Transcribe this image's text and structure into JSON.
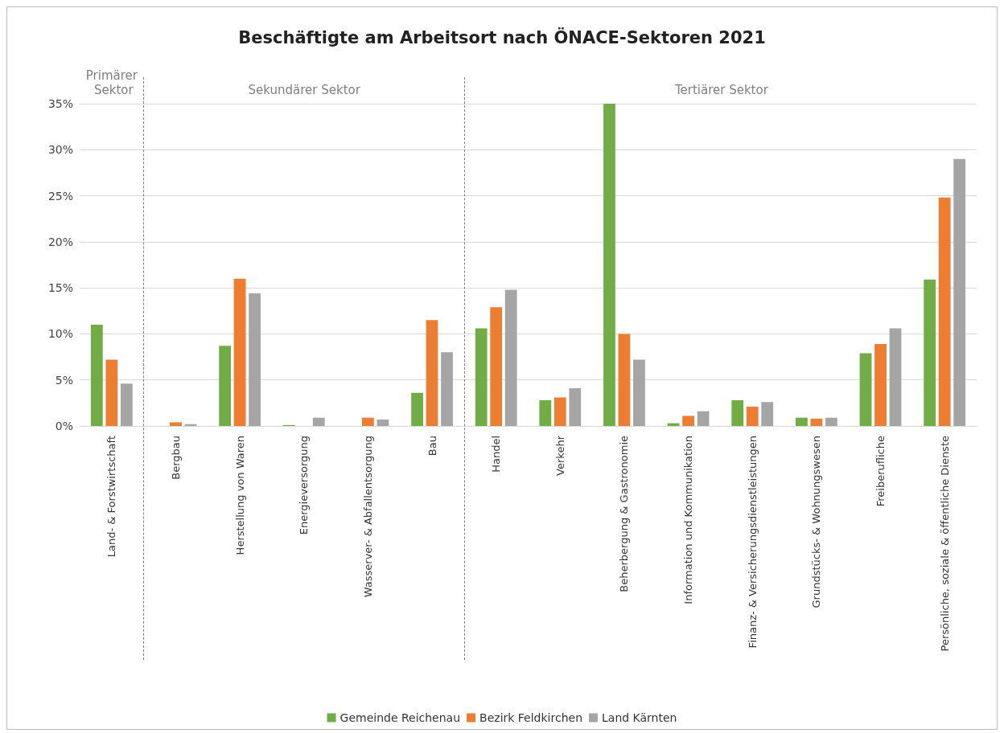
{
  "chart_data": {
    "type": "bar",
    "title": "Beschäftigte am Arbeitsort nach ÖNACE-Sektoren 2021",
    "categories": [
      "Land- & Forstwirtschaft",
      "Bergbau",
      "Herstellung von Waren",
      "Energieversorgung",
      "Wasserver- & Abfallentsorgung",
      "Bau",
      "Handel",
      "Verkehr",
      "Beherbergung & Gastronomie",
      "Information und Kommunikation",
      "Finanz- & Versicherungsdienstleistungen",
      "Grundstücks- & Wohnungswesen",
      "Freiberufliche",
      "Persönliche, soziale & öffentliche Dienste"
    ],
    "series": [
      {
        "name": "Gemeinde Reichenau",
        "color": "#70ad47",
        "values": [
          11.0,
          0,
          8.7,
          0.1,
          0,
          3.6,
          10.6,
          2.8,
          35.0,
          0.3,
          2.8,
          0.9,
          7.9,
          15.9
        ]
      },
      {
        "name": "Bezirk Feldkirchen",
        "color": "#ed7d31",
        "values": [
          7.2,
          0.4,
          16.0,
          0,
          0.9,
          11.5,
          12.9,
          3.1,
          10.0,
          1.1,
          2.1,
          0.8,
          8.9,
          24.8
        ]
      },
      {
        "name": "Land Kärnten",
        "color": "#a5a5a5",
        "values": [
          4.6,
          0.2,
          14.4,
          0.9,
          0.7,
          8.0,
          14.8,
          4.1,
          7.2,
          1.6,
          2.6,
          0.9,
          10.6,
          29.0
        ]
      }
    ],
    "ylim": [
      0,
      35
    ],
    "yticks": [
      {
        "value": 0,
        "label": "0%"
      },
      {
        "value": 5,
        "label": "5%"
      },
      {
        "value": 10,
        "label": "10%"
      },
      {
        "value": 15,
        "label": "15%"
      },
      {
        "value": 20,
        "label": "20%"
      },
      {
        "value": 25,
        "label": "25%"
      },
      {
        "value": 30,
        "label": "30%"
      },
      {
        "value": 35,
        "label": "35%"
      }
    ],
    "annotations": [
      "Primärer Sektor",
      "Sekundärer Sektor",
      "Tertiärer Sektor"
    ],
    "grid": "y",
    "legend": "bottom"
  }
}
